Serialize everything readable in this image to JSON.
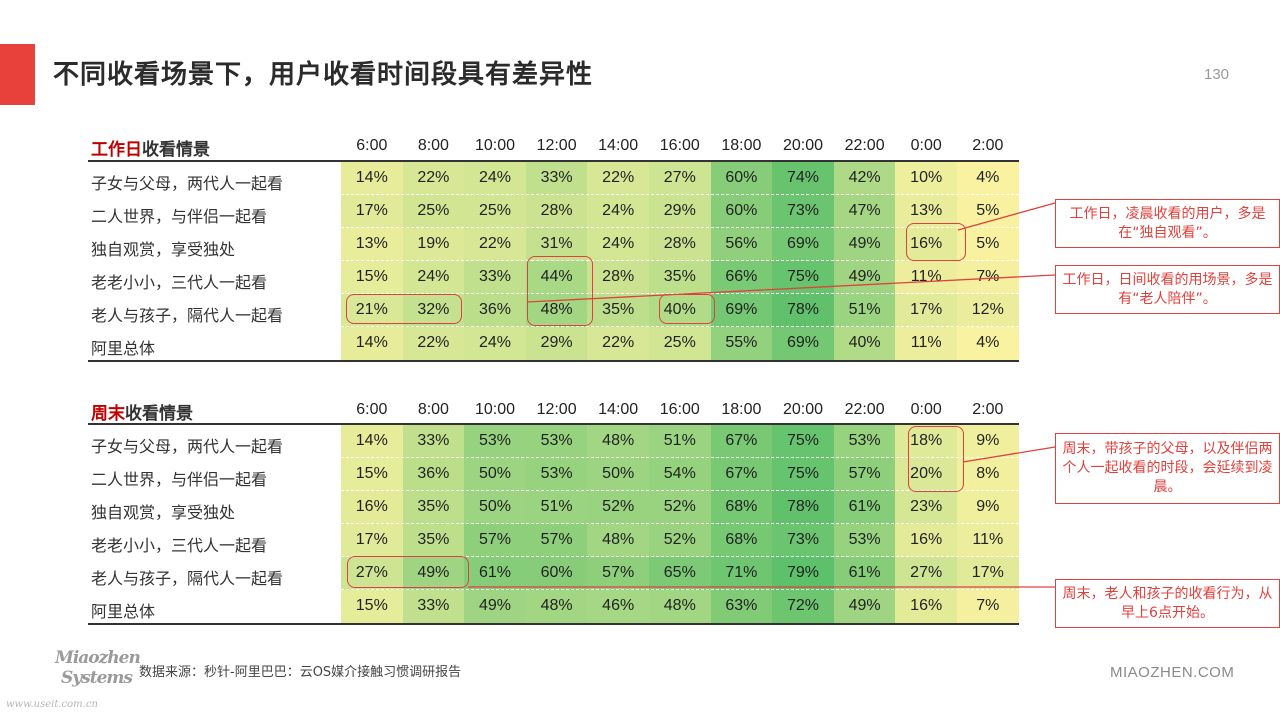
{
  "page": {
    "title": "不同收看场景下，用户收看时间段具有差异性",
    "number": "130"
  },
  "chart_data": [
    {
      "type": "heatmap",
      "title_highlight": "工作日",
      "title_rest": "收看情景",
      "columns": [
        "6:00",
        "8:00",
        "10:00",
        "12:00",
        "14:00",
        "16:00",
        "18:00",
        "20:00",
        "22:00",
        "0:00",
        "2:00"
      ],
      "rows": [
        {
          "label": "子女与父母，两代人一起看",
          "values": [
            14,
            22,
            24,
            33,
            22,
            27,
            60,
            74,
            42,
            10,
            4
          ]
        },
        {
          "label": "二人世界，与伴侣一起看",
          "values": [
            17,
            25,
            25,
            28,
            24,
            29,
            60,
            73,
            47,
            13,
            5
          ]
        },
        {
          "label": "独自观赏，享受独处",
          "values": [
            13,
            19,
            22,
            31,
            24,
            28,
            56,
            69,
            49,
            16,
            5
          ]
        },
        {
          "label": "老老小小，三代人一起看",
          "values": [
            15,
            24,
            33,
            44,
            28,
            35,
            66,
            75,
            49,
            11,
            7
          ]
        },
        {
          "label": "老人与孩子，隔代人一起看",
          "values": [
            21,
            32,
            36,
            48,
            35,
            40,
            69,
            78,
            51,
            17,
            12
          ]
        },
        {
          "label": "阿里总体",
          "values": [
            14,
            22,
            24,
            29,
            22,
            25,
            55,
            69,
            40,
            11,
            4
          ]
        }
      ],
      "unit": "%"
    },
    {
      "type": "heatmap",
      "title_highlight": "周末",
      "title_rest": "收看情景",
      "columns": [
        "6:00",
        "8:00",
        "10:00",
        "12:00",
        "14:00",
        "16:00",
        "18:00",
        "20:00",
        "22:00",
        "0:00",
        "2:00"
      ],
      "rows": [
        {
          "label": "子女与父母，两代人一起看",
          "values": [
            14,
            33,
            53,
            53,
            48,
            51,
            67,
            75,
            53,
            18,
            9
          ]
        },
        {
          "label": "二人世界，与伴侣一起看",
          "values": [
            15,
            36,
            50,
            53,
            50,
            54,
            67,
            75,
            57,
            20,
            8
          ]
        },
        {
          "label": "独自观赏，享受独处",
          "values": [
            16,
            35,
            50,
            51,
            52,
            52,
            68,
            78,
            61,
            23,
            9
          ]
        },
        {
          "label": "老老小小，三代人一起看",
          "values": [
            17,
            35,
            57,
            57,
            48,
            52,
            68,
            73,
            53,
            16,
            11
          ]
        },
        {
          "label": "老人与孩子，隔代人一起看",
          "values": [
            27,
            49,
            61,
            60,
            57,
            65,
            71,
            79,
            61,
            27,
            17
          ]
        },
        {
          "label": "阿里总体",
          "values": [
            15,
            33,
            49,
            48,
            46,
            48,
            63,
            72,
            49,
            16,
            7
          ]
        }
      ],
      "unit": "%"
    }
  ],
  "callouts": [
    "工作日，凌晨收看的用户，多是在“独自观看”。",
    "工作日，日间收看的用场景，多是有“老人陪伴”。",
    "周末，带孩子的父母，以及伴侣两个人一起收看的时段，会延续到凌晨。",
    "周末，老人和孩子的收看行为，从早上6点开始。"
  ],
  "footer": {
    "source": "数据来源：秒针-阿里巴巴：云OS媒介接触习惯调研报告",
    "brand": "MIAOZHEN.COM",
    "logo_line1": "Miaozhen",
    "logo_line2": "Systems",
    "watermark": "www.useit.com.cn"
  },
  "colors": {
    "accent": "#e8413c",
    "heat_low": "#fff4a3",
    "heat_high": "#5bbf6a",
    "callout": "#e0413c"
  }
}
